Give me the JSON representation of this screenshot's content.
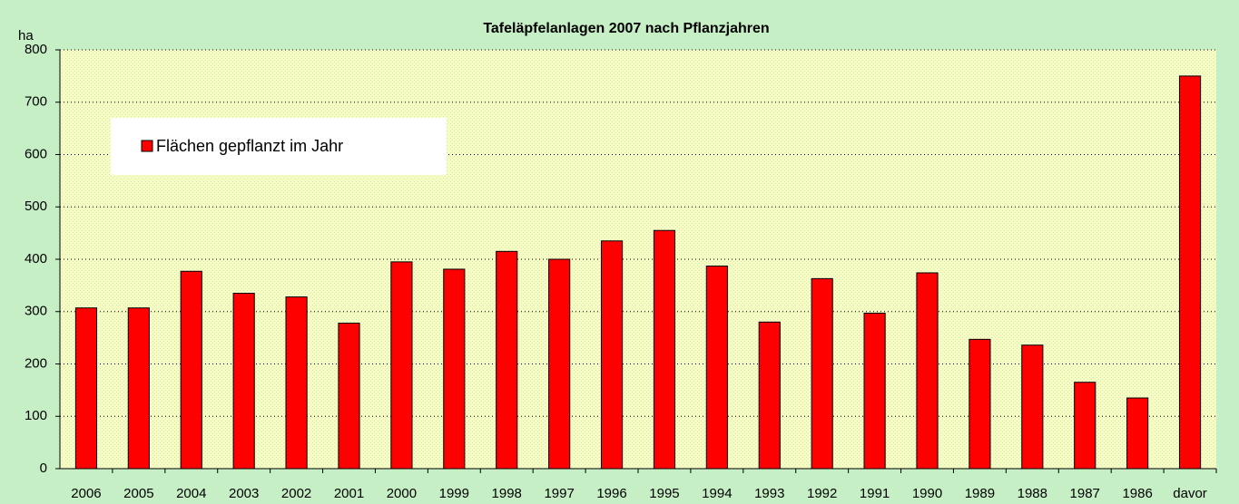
{
  "chart_data": {
    "type": "bar",
    "title": "Tafeläpfelanlagen 2007 nach Pflanzjahren",
    "ylabel": "ha",
    "categories": [
      "2006",
      "2005",
      "2004",
      "2003",
      "2002",
      "2001",
      "2000",
      "1999",
      "1998",
      "1997",
      "1996",
      "1995",
      "1994",
      "1993",
      "1992",
      "1991",
      "1990",
      "1989",
      "1988",
      "1987",
      "1986",
      "davor"
    ],
    "series": [
      {
        "name": "Flächen gepflanzt im Jahr",
        "color": "#ff0000",
        "values": [
          307,
          307,
          377,
          335,
          328,
          278,
          395,
          381,
          415,
          400,
          435,
          455,
          387,
          280,
          363,
          297,
          374,
          247,
          236,
          165,
          135,
          750
        ]
      }
    ],
    "ylim": [
      0,
      800
    ],
    "yticks": [
      0,
      100,
      200,
      300,
      400,
      500,
      600,
      700,
      800
    ],
    "grid": true,
    "legend": "upper left"
  }
}
